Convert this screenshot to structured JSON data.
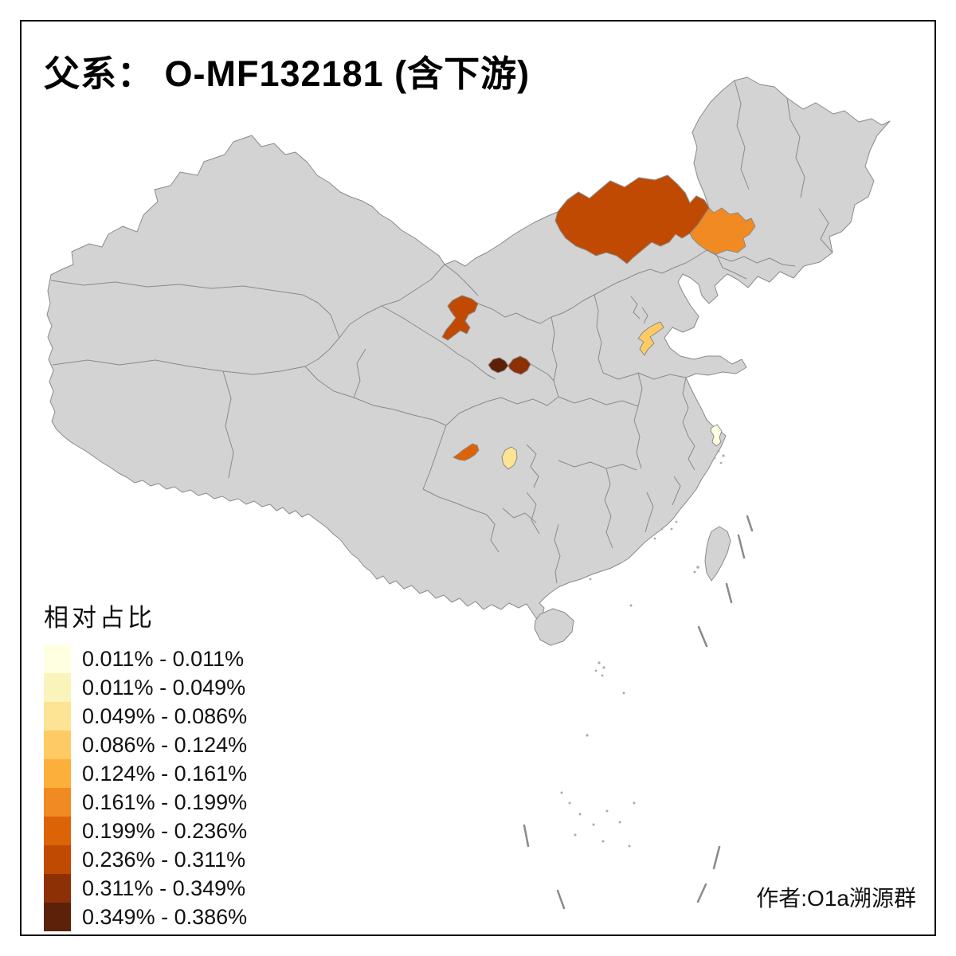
{
  "title": "父系： O-MF132181 (含下游)",
  "attribution": "作者:O1a溯源群",
  "legend": {
    "title": "相对占比",
    "classes": [
      {
        "label": "0.011% - 0.011%",
        "color": "#FFFFE2"
      },
      {
        "label": "0.011% - 0.049%",
        "color": "#FBF4BA"
      },
      {
        "label": "0.049% - 0.086%",
        "color": "#FDE394"
      },
      {
        "label": "0.086% - 0.124%",
        "color": "#FDCA63"
      },
      {
        "label": "0.124% - 0.161%",
        "color": "#FDAF3B"
      },
      {
        "label": "0.161% - 0.199%",
        "color": "#F18A22"
      },
      {
        "label": "0.199% - 0.236%",
        "color": "#DC6407"
      },
      {
        "label": "0.236% - 0.311%",
        "color": "#C04A02"
      },
      {
        "label": "0.311% - 0.349%",
        "color": "#8D3006"
      },
      {
        "label": "0.349% - 0.386%",
        "color": "#5C2108"
      }
    ]
  },
  "map": {
    "base_fill": "#D3D3D3",
    "border_color": "#8A8A8A",
    "sea_color": "#FFFFFF",
    "highlighted_regions": [
      {
        "id": "inner-mongolia-central",
        "class_index": 7,
        "value_range": "0.236% - 0.311%"
      },
      {
        "id": "northeast-west-jilin",
        "class_index": 5,
        "value_range": "0.161% - 0.199%"
      },
      {
        "id": "ningxia",
        "class_index": 7,
        "value_range": "0.236% - 0.311%"
      },
      {
        "id": "gansu-southeast-west",
        "class_index": 9,
        "value_range": "0.349% - 0.386%"
      },
      {
        "id": "gansu-southeast-east",
        "class_index": 8,
        "value_range": "0.311% - 0.349%"
      },
      {
        "id": "sichuan-northwest",
        "class_index": 6,
        "value_range": "0.199% - 0.236%"
      },
      {
        "id": "sichuan-central",
        "class_index": 2,
        "value_range": "0.049% - 0.086%"
      },
      {
        "id": "hebei-south",
        "class_index": 3,
        "value_range": "0.086% - 0.124%"
      },
      {
        "id": "shanghai",
        "class_index": 0,
        "value_range": "0.011% - 0.011%"
      }
    ]
  },
  "chart_data": {
    "type": "choropleth_map",
    "title": "父系： O-MF132181 (含下游)",
    "legend_title": "相对占比",
    "legend_position": "bottom-left",
    "class_breaks_percent": [
      0.011,
      0.011,
      0.049,
      0.086,
      0.124,
      0.161,
      0.199,
      0.236,
      0.311,
      0.349,
      0.386
    ],
    "classes": [
      "0.011% - 0.011%",
      "0.011% - 0.049%",
      "0.049% - 0.086%",
      "0.086% - 0.124%",
      "0.124% - 0.161%",
      "0.161% - 0.199%",
      "0.199% - 0.236%",
      "0.236% - 0.311%",
      "0.311% - 0.349%",
      "0.349% - 0.386%"
    ],
    "regions": [
      {
        "id": "inner-mongolia-central",
        "value_range": "0.236% - 0.311%"
      },
      {
        "id": "northeast-west-jilin",
        "value_range": "0.161% - 0.199%"
      },
      {
        "id": "ningxia",
        "value_range": "0.236% - 0.311%"
      },
      {
        "id": "gansu-southeast-west",
        "value_range": "0.349% - 0.386%"
      },
      {
        "id": "gansu-southeast-east",
        "value_range": "0.311% - 0.349%"
      },
      {
        "id": "sichuan-northwest",
        "value_range": "0.199% - 0.236%"
      },
      {
        "id": "sichuan-central",
        "value_range": "0.049% - 0.086%"
      },
      {
        "id": "hebei-south",
        "value_range": "0.086% - 0.124%"
      },
      {
        "id": "shanghai",
        "value_range": "0.011% - 0.011%"
      }
    ]
  }
}
